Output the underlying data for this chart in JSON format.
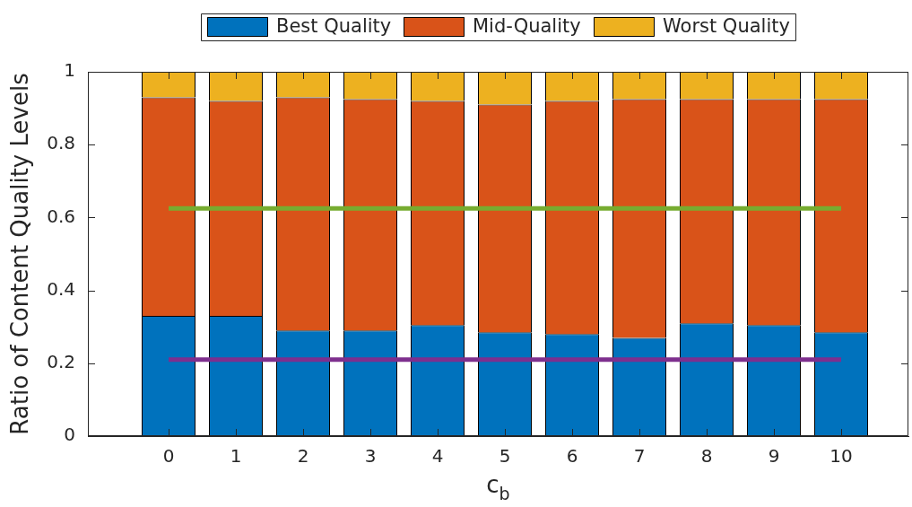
{
  "chart_data": {
    "type": "bar",
    "stacked": true,
    "categories": [
      "0",
      "1",
      "2",
      "3",
      "4",
      "5",
      "6",
      "7",
      "8",
      "9",
      "10"
    ],
    "series": [
      {
        "name": "Best Quality",
        "color": "#0072bd",
        "values": [
          0.33,
          0.33,
          0.29,
          0.29,
          0.305,
          0.285,
          0.28,
          0.27,
          0.31,
          0.305,
          0.285
        ]
      },
      {
        "name": "Mid-Quality",
        "color": "#d95319",
        "values": [
          0.6,
          0.59,
          0.64,
          0.635,
          0.615,
          0.625,
          0.64,
          0.655,
          0.615,
          0.62,
          0.64
        ]
      },
      {
        "name": "Worst Quality",
        "color": "#edb120",
        "values": [
          0.07,
          0.08,
          0.07,
          0.075,
          0.08,
          0.09,
          0.08,
          0.075,
          0.075,
          0.075,
          0.075
        ]
      },
      {
        "type": "line",
        "color": "#77ac30",
        "values": [
          0.625,
          0.625,
          0.625,
          0.625,
          0.625,
          0.625,
          0.625,
          0.625,
          0.625,
          0.625,
          0.625
        ]
      },
      {
        "type": "line",
        "color": "#7e2f8e",
        "values": [
          0.21,
          0.21,
          0.21,
          0.21,
          0.21,
          0.21,
          0.21,
          0.21,
          0.21,
          0.21,
          0.21
        ]
      }
    ],
    "xlabel": "c$_{b}$",
    "ylabel": "Ratio of Content Quality Levels",
    "ylim": [
      0,
      1
    ],
    "yticks": [
      0,
      0.2,
      0.4,
      0.6,
      0.8,
      1
    ],
    "legend": "top",
    "grid": false,
    "marker": "none"
  }
}
